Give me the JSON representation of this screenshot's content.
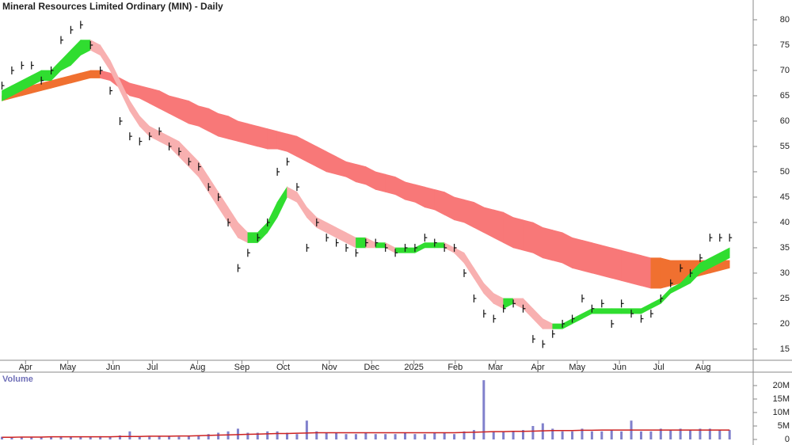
{
  "chart_data": [
    {
      "type": "price",
      "title": "Mineral Resources Limited Ordinary (MIN) - Daily",
      "xlim": [
        -0.2,
        76.4
      ],
      "xticks": [
        {
          "value": 2.4,
          "label": "Apr"
        },
        {
          "value": 6.7,
          "label": "May"
        },
        {
          "value": 11.3,
          "label": "Jun"
        },
        {
          "value": 15.3,
          "label": "Jul"
        },
        {
          "value": 19.9,
          "label": "Aug"
        },
        {
          "value": 24.4,
          "label": "Sep"
        },
        {
          "value": 28.6,
          "label": "Oct"
        },
        {
          "value": 33.3,
          "label": "Nov"
        },
        {
          "value": 37.6,
          "label": "Dec"
        },
        {
          "value": 41.9,
          "label": "2025"
        },
        {
          "value": 46.1,
          "label": "Feb"
        },
        {
          "value": 50.2,
          "label": "Mar"
        },
        {
          "value": 54.5,
          "label": "Apr"
        },
        {
          "value": 58.5,
          "label": "May"
        },
        {
          "value": 62.8,
          "label": "Jun"
        },
        {
          "value": 66.8,
          "label": "Jul"
        },
        {
          "value": 71.3,
          "label": "Aug"
        }
      ],
      "ylim": [
        12.8,
        83.9
      ],
      "yticks": [
        15,
        20,
        25,
        30,
        35,
        40,
        45,
        50,
        55,
        60,
        65,
        70,
        75,
        80
      ],
      "series": [
        {
          "color": "#111111",
          "values": [
            67,
            70,
            71,
            71,
            68,
            70,
            76,
            78,
            79,
            75,
            70,
            66,
            60,
            57,
            56,
            57,
            58,
            55,
            54,
            52,
            51,
            47,
            45,
            40,
            31,
            34,
            37,
            40,
            50,
            52,
            47,
            35,
            40,
            37,
            36,
            35,
            34,
            36,
            36,
            35,
            34,
            35,
            35,
            37,
            36,
            35,
            35,
            30,
            25,
            22,
            21,
            23,
            24,
            23,
            17,
            16,
            18,
            20,
            21,
            25,
            23,
            24,
            20,
            24,
            22,
            21,
            22,
            25,
            28,
            31,
            30,
            33,
            37,
            37,
            37
          ]
        }
      ],
      "bands": [
        {
          "rising_color": "#f07030",
          "falling_color": "#f87878",
          "upper": [
            65,
            66,
            66.5,
            67,
            67.5,
            68,
            68.5,
            69,
            69.5,
            70,
            70,
            69.5,
            68.5,
            67.5,
            67,
            66.5,
            66,
            65,
            64.5,
            64,
            63,
            62.5,
            61.5,
            61,
            60,
            59.5,
            59,
            58.5,
            58,
            57.5,
            57,
            56,
            55,
            54,
            53,
            52,
            51.5,
            51,
            50,
            49.5,
            49,
            48,
            47.5,
            47,
            46.5,
            46,
            45,
            44.5,
            44,
            43,
            42.5,
            42,
            41,
            40.5,
            40,
            39,
            38.5,
            38,
            37,
            36.5,
            36,
            35.5,
            35,
            34.5,
            34,
            33.5,
            33,
            33,
            32.5,
            32.5,
            32.5,
            32.5,
            32.5,
            32.5,
            32.5
          ],
          "lower": [
            64,
            64.5,
            65,
            65.5,
            66,
            66.5,
            67,
            67.5,
            68,
            68.5,
            68.5,
            68,
            66.5,
            65,
            64.5,
            63.5,
            62.5,
            61.5,
            60.5,
            59.5,
            59,
            58,
            57,
            56.5,
            56,
            55.5,
            55,
            54.5,
            54.5,
            54,
            53,
            52,
            51,
            50,
            49.5,
            49,
            48,
            47.5,
            46.5,
            46,
            45.5,
            44.5,
            44,
            43,
            42.5,
            41.5,
            40.5,
            40,
            39,
            38,
            37,
            36,
            35,
            34.5,
            34,
            33,
            32.5,
            32,
            31,
            30.5,
            30,
            29.5,
            29,
            28.5,
            28,
            27.5,
            27,
            27,
            27.5,
            28,
            29,
            29.5,
            30,
            30.5,
            31
          ]
        },
        {
          "rising_color": "#30dd30",
          "falling_color": "#f8b0b0",
          "upper": [
            66,
            67,
            68,
            69,
            70,
            70,
            72,
            74,
            76,
            76,
            75,
            72,
            68,
            64,
            61,
            59,
            58,
            57,
            56,
            54,
            52,
            49,
            46,
            43,
            40,
            38,
            38,
            40,
            44,
            47,
            46,
            43,
            41,
            40,
            39,
            38,
            37,
            37,
            36,
            36,
            35,
            35,
            35,
            36,
            36,
            36,
            35,
            34,
            31,
            28,
            26,
            25,
            25,
            25,
            23,
            21,
            20,
            20,
            21,
            22,
            23,
            23,
            23,
            23,
            23,
            23,
            24,
            25,
            27,
            28,
            30,
            32,
            33,
            34,
            35
          ],
          "lower": [
            64,
            65,
            66,
            67,
            68,
            68,
            70,
            71,
            73,
            74,
            73,
            70,
            66,
            62,
            59,
            57,
            56,
            55,
            53,
            51,
            49,
            46,
            43,
            40,
            37,
            36,
            36,
            38,
            41,
            45,
            44,
            41,
            39,
            38,
            37,
            36,
            35,
            35,
            35,
            35,
            34,
            34,
            34,
            35,
            35,
            35,
            34,
            32,
            29,
            26,
            24,
            23,
            24,
            23,
            21,
            19,
            19,
            19,
            20,
            21,
            22,
            22,
            22,
            22,
            22,
            22,
            23,
            24,
            26,
            27,
            28,
            30,
            31,
            32,
            33
          ]
        }
      ]
    },
    {
      "type": "volume",
      "title": "Volume",
      "xlim": [
        -0.2,
        76.4
      ],
      "ylim": [
        0,
        24.1
      ],
      "yticks": [
        0,
        {
          "value": 5,
          "label": "5M"
        },
        {
          "value": 10,
          "label": "10M"
        },
        {
          "value": 15,
          "label": "15M"
        },
        {
          "value": 20,
          "label": "20M"
        }
      ],
      "series": [
        {
          "color": "#8080cc",
          "values": [
            1,
            0.8,
            1,
            1,
            0.9,
            1,
            1.2,
            1,
            1,
            1,
            1.2,
            1,
            1.5,
            3,
            1.2,
            1,
            1.3,
            1.2,
            1,
            1.4,
            1.5,
            2,
            2.5,
            3,
            4,
            2.5,
            2.5,
            3,
            3,
            2.5,
            2,
            7,
            3,
            2.5,
            2.5,
            2,
            2,
            2.5,
            2,
            2,
            2,
            2.5,
            2,
            2,
            2.5,
            2.5,
            2,
            3,
            3.5,
            22,
            3,
            3,
            3,
            3.5,
            5,
            6,
            4,
            3,
            3,
            4,
            3,
            3,
            3.5,
            3,
            7,
            3,
            3,
            4,
            3.5,
            4,
            3.5,
            4,
            4,
            3.5,
            3.5
          ]
        },
        {
          "color": "#cc2222",
          "values": [
            0.8,
            0.8,
            0.9,
            0.9,
            0.9,
            1,
            1,
            1,
            1,
            1,
            1,
            1,
            1.1,
            1.1,
            1.1,
            1.2,
            1.2,
            1.2,
            1.3,
            1.3,
            1.4,
            1.5,
            1.6,
            1.7,
            1.8,
            1.9,
            2,
            2.1,
            2.2,
            2.2,
            2.3,
            2.4,
            2.5,
            2.5,
            2.5,
            2.5,
            2.5,
            2.5,
            2.5,
            2.5,
            2.5,
            2.5,
            2.5,
            2.5,
            2.5,
            2.5,
            2.5,
            2.6,
            2.7,
            2.8,
            2.9,
            2.9,
            3,
            3,
            3.1,
            3.2,
            3.3,
            3.3,
            3.3,
            3.4,
            3.4,
            3.5,
            3.5,
            3.5,
            3.5,
            3.5,
            3.5,
            3.5,
            3.5,
            3.5,
            3.5,
            3.5,
            3.5,
            3.5,
            3.5
          ]
        }
      ]
    }
  ]
}
